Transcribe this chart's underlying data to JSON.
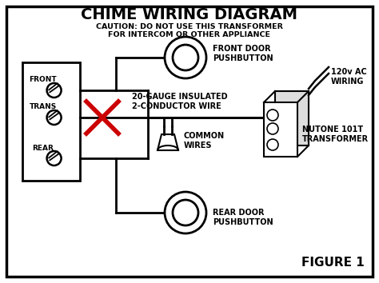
{
  "title": "CHIME WIRING DIAGRAM",
  "caution_line1": "CAUTION: DO NOT USE THIS TRANSFORMER",
  "caution_line2": "FOR INTERCOM OR OTHER APPLIANCE",
  "figure_label": "FIGURE 1",
  "bg_color": "#ffffff",
  "border_color": "#000000",
  "line_color": "#000000",
  "red_x_color": "#cc0000",
  "text_color": "#000000",
  "label_front": "FRONT",
  "label_trans": "TRANS",
  "label_rear": "REAR",
  "label_front_door": "FRONT DOOR\nPUSHBUTTON",
  "label_rear_door": "REAR DOOR\nPUSHBUTTON",
  "label_gauge": "20-GAUGE INSULATED\n2-CONDUCTOR WIRE",
  "label_common": "COMMON\nWIRES",
  "label_nutone": "NUTONE 101T\nTRANSFORMER",
  "label_ac": "120v AC\nWIRING",
  "figsize": [
    4.74,
    3.54
  ],
  "dpi": 100
}
